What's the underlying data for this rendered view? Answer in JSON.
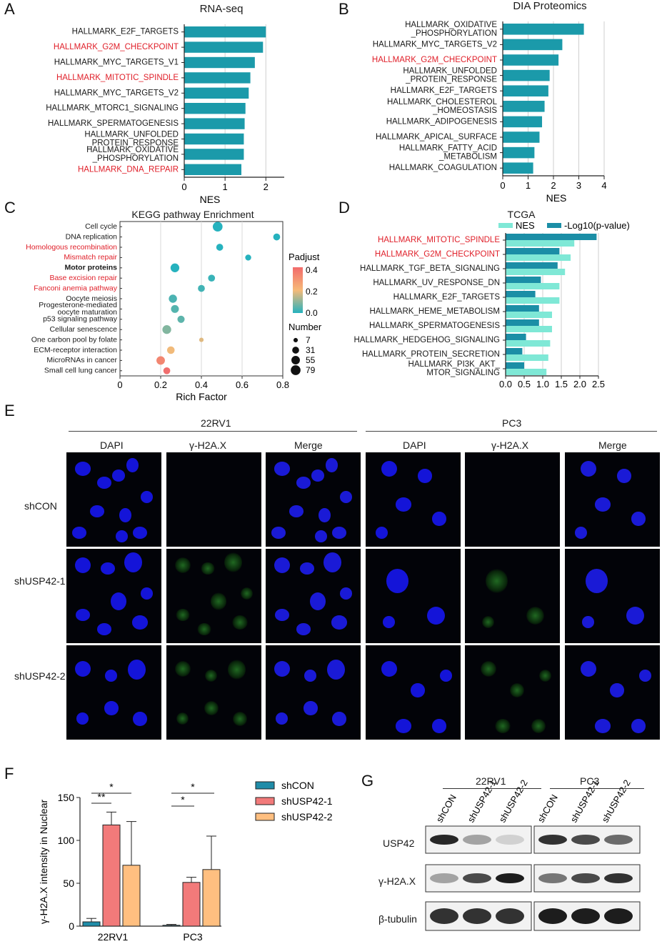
{
  "panels": {
    "A": "A",
    "B": "B",
    "C": "C",
    "D": "D",
    "E": "E",
    "F": "F",
    "G": "G"
  },
  "panelA": {
    "title": "RNA-seq",
    "xlabel": "NES",
    "ticks": [
      "0",
      "1",
      "2"
    ],
    "bar_color": "#1b9aaa",
    "items": [
      {
        "label": "HALLMARK_E2F_TARGETS",
        "value": 2.0,
        "highlight": false
      },
      {
        "label": "HALLMARK_G2M_CHECKPOINT",
        "value": 1.93,
        "highlight": true
      },
      {
        "label": "HALLMARK_MYC_TARGETS_V1",
        "value": 1.73,
        "highlight": false
      },
      {
        "label": "HALLMARK_MITOTIC_SPINDLE",
        "value": 1.62,
        "highlight": true
      },
      {
        "label": "HALLMARK_MYC_TARGETS_V2",
        "value": 1.58,
        "highlight": false
      },
      {
        "label": "HALLMARK_MTORC1_SIGNALING",
        "value": 1.5,
        "highlight": false
      },
      {
        "label": "HALLMARK_SPERMATOGENESIS",
        "value": 1.48,
        "highlight": false
      },
      {
        "label": "HALLMARK_UNFOLDED\n_PROTEIN_RESPONSE",
        "value": 1.46,
        "highlight": false
      },
      {
        "label": "HALLMARK_OXIDATIVE\n_PHOSPHORYLATION",
        "value": 1.46,
        "highlight": false
      },
      {
        "label": "HALLMARK_DNA_REPAIR",
        "value": 1.4,
        "highlight": true
      }
    ]
  },
  "panelB": {
    "title": "DIA Proteomics",
    "xlabel": "NES",
    "ticks": [
      "0",
      "1",
      "2",
      "3",
      "4"
    ],
    "items": [
      {
        "label": "HALLMARK_OXIDATIVE\n_PHOSPHORYLATION",
        "value": 3.2,
        "highlight": false
      },
      {
        "label": "HALLMARK_MYC_TARGETS_V2",
        "value": 2.35,
        "highlight": false
      },
      {
        "label": "HALLMARK_G2M_CHECKPOINT",
        "value": 2.2,
        "highlight": true
      },
      {
        "label": "HALLMARK_UNFOLDED\n_PROTEIN_RESPONSE",
        "value": 1.85,
        "highlight": false
      },
      {
        "label": "HALLMARK_E2F_TARGETS",
        "value": 1.8,
        "highlight": false
      },
      {
        "label": "HALLMARK_CHOLESTEROL\n_HOMEOSTASIS",
        "value": 1.65,
        "highlight": false
      },
      {
        "label": "HALLMARK_ADIPOGENESIS",
        "value": 1.55,
        "highlight": false
      },
      {
        "label": "HALLMARK_APICAL_SURFACE",
        "value": 1.45,
        "highlight": false
      },
      {
        "label": "HALLMARK_FATTY_ACID\n_METABOLISM",
        "value": 1.25,
        "highlight": false
      },
      {
        "label": "HALLMARK_COAGULATION",
        "value": 1.2,
        "highlight": false
      }
    ]
  },
  "panelC": {
    "title": "KEGG pathway Enrichment",
    "xlabel": "Rich Factor",
    "ticks": [
      "0",
      "0.2",
      "0.4",
      "0.6",
      "0.8"
    ],
    "legend_padjust_title": "Padjust",
    "legend_padjust_ticks": [
      "0.4",
      "0.2",
      "0.0"
    ],
    "legend_number_title": "Number",
    "legend_number_values": [
      "7",
      "31",
      "55",
      "79"
    ],
    "items": [
      {
        "label": "Cell cycle",
        "x": 0.48,
        "n": 79,
        "p": 0.0,
        "highlight": false,
        "bold": false
      },
      {
        "label": "DNA replication",
        "x": 0.77,
        "n": 31,
        "p": 0.0,
        "highlight": false,
        "bold": false
      },
      {
        "label": "Homologous recombination",
        "x": 0.49,
        "n": 31,
        "p": 0.0,
        "highlight": true,
        "bold": false
      },
      {
        "label": "Mismatch repair",
        "x": 0.63,
        "n": 20,
        "p": 0.0,
        "highlight": true,
        "bold": false
      },
      {
        "label": "Motor proteins",
        "x": 0.27,
        "n": 60,
        "p": 0.0,
        "highlight": false,
        "bold": true
      },
      {
        "label": "Base excision repair",
        "x": 0.45,
        "n": 31,
        "p": 0.02,
        "highlight": true,
        "bold": false
      },
      {
        "label": "Fanconi anemia pathway",
        "x": 0.4,
        "n": 31,
        "p": 0.03,
        "highlight": true,
        "bold": false
      },
      {
        "label": "Oocyte meiosis",
        "x": 0.26,
        "n": 50,
        "p": 0.04,
        "highlight": false,
        "bold": false
      },
      {
        "label": "Progesterone-mediated\noocyte maturation",
        "x": 0.27,
        "n": 45,
        "p": 0.05,
        "highlight": false,
        "bold": false
      },
      {
        "label": "p53 signaling pathway",
        "x": 0.3,
        "n": 35,
        "p": 0.06,
        "highlight": false,
        "bold": false
      },
      {
        "label": "Cellular senescence",
        "x": 0.23,
        "n": 60,
        "p": 0.1,
        "highlight": false,
        "bold": false
      },
      {
        "label": "One carbon pool by folate",
        "x": 0.4,
        "n": 7,
        "p": 0.2,
        "highlight": false,
        "bold": false
      },
      {
        "label": "ECM-receptor interaction",
        "x": 0.25,
        "n": 40,
        "p": 0.22,
        "highlight": false,
        "bold": false
      },
      {
        "label": "MicroRNAs in cancer",
        "x": 0.2,
        "n": 55,
        "p": 0.38,
        "highlight": false,
        "bold": false
      },
      {
        "label": "Small cell lung cancer",
        "x": 0.23,
        "n": 31,
        "p": 0.45,
        "highlight": false,
        "bold": false
      }
    ]
  },
  "panelD": {
    "title": "TCGA",
    "legend_nes": "NES",
    "legend_log": "-Log10(p-value)",
    "nes_color": "#7fe8d6",
    "log_color": "#1b8ea6",
    "ticks": [
      "0.0",
      "0.5",
      "1.0",
      "1.5",
      "2.0",
      "2.5"
    ],
    "items": [
      {
        "label": "HALLMARK_MITOTIC_SPINDLE",
        "nes": 1.85,
        "log": 2.45,
        "highlight": true
      },
      {
        "label": "HALLMARK_G2M_CHECKPOINT",
        "nes": 1.75,
        "log": 1.45,
        "highlight": true
      },
      {
        "label": "HALLMARK_TGF_BETA_SIGNALING",
        "nes": 1.6,
        "log": 1.4,
        "highlight": false
      },
      {
        "label": "HALLMARK_UV_RESPONSE_DN",
        "nes": 1.45,
        "log": 0.95,
        "highlight": false
      },
      {
        "label": "HALLMARK_E2F_TARGETS",
        "nes": 1.45,
        "log": 0.8,
        "highlight": false
      },
      {
        "label": "HALLMARK_HEME_METABOLISM",
        "nes": 1.25,
        "log": 0.9,
        "highlight": false
      },
      {
        "label": "HALLMARK_SPERMATOGENESIS",
        "nes": 1.25,
        "log": 0.9,
        "highlight": false
      },
      {
        "label": "HALLMARK_HEDGEHOG_SIGNALING",
        "nes": 1.2,
        "log": 0.55,
        "highlight": false
      },
      {
        "label": "HALLMARK_PROTEIN_SECRETION",
        "nes": 1.15,
        "log": 0.45,
        "highlight": false
      },
      {
        "label": "HALLMARK_PI3K_AKT_\nMTOR_SIGNALING",
        "nes": 1.1,
        "log": 0.5,
        "highlight": false
      }
    ]
  },
  "panelE": {
    "cell_lines": [
      "22RV1",
      "PC3"
    ],
    "channels": [
      "DAPI",
      "γ-H2A.X",
      "Merge",
      "DAPI",
      "γ-H2A.X",
      "Merge"
    ],
    "rows": [
      "shCON",
      "shUSP42-1",
      "shUSP42-2"
    ]
  },
  "panelF": {
    "ylabel": "γ-H2A.X intensity in Nuclear",
    "yticks": [
      "0",
      "50",
      "100",
      "150"
    ],
    "groups": [
      "22RV1",
      "PC3"
    ],
    "legend": [
      {
        "name": "shCON",
        "color": "#1f8ca8"
      },
      {
        "name": "shUSP42-1",
        "color": "#f27a7a"
      },
      {
        "name": "shUSP42-2",
        "color": "#ffbf80"
      }
    ],
    "values": [
      [
        5,
        118,
        71
      ],
      [
        1,
        51,
        66
      ]
    ],
    "errors": [
      [
        4,
        15,
        51
      ],
      [
        1,
        6,
        39
      ]
    ],
    "sig": {
      "s1": "*",
      "s2": "**",
      "s3": "*",
      "s4": "*"
    }
  },
  "panelG": {
    "cell_lines": [
      "22RV1",
      "PC3"
    ],
    "lanes": [
      "shCON",
      "shUSP42-1",
      "shUSP42-2",
      "shCON",
      "shUSP42-1",
      "shUSP42-2"
    ],
    "proteins": [
      "USP42",
      "γ-H2A.X",
      "β-tubulin"
    ]
  }
}
